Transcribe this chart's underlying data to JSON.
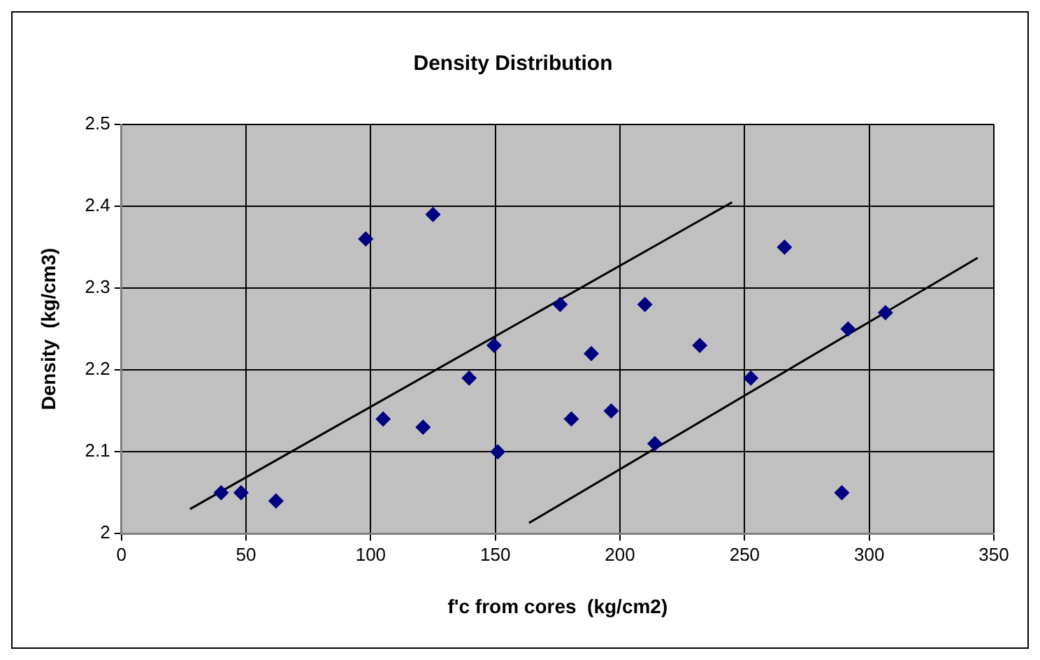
{
  "chart_data": {
    "type": "scatter",
    "title": "Density Distribution",
    "xlabel": "f'c from cores  (kg/cm2)",
    "ylabel": "Density  (kg/cm3)",
    "xlim": [
      0,
      350
    ],
    "xticks": [
      0,
      50,
      100,
      150,
      200,
      250,
      300,
      350
    ],
    "ylim": [
      2,
      2.5
    ],
    "yticks": [
      2,
      2.1,
      2.2,
      2.3,
      2.4,
      2.5
    ],
    "grid": true,
    "legend": false,
    "marker": "diamond",
    "series": [
      {
        "color": "#000080",
        "x": [
          40,
          48,
          62,
          98,
          125,
          105,
          121,
          139.5,
          149.5,
          151,
          176,
          180.5,
          188.5,
          196.5,
          210,
          214,
          232,
          252.5,
          266,
          291.5,
          306.5,
          289
        ],
        "values": [
          2.05,
          2.05,
          2.04,
          2.36,
          2.39,
          2.14,
          2.13,
          2.19,
          2.23,
          2.1,
          2.28,
          2.14,
          2.22,
          2.15,
          2.28,
          2.11,
          2.23,
          2.19,
          2.35,
          2.25,
          2.27,
          2.05
        ]
      },
      {
        "type": "line",
        "color": "#000000",
        "marker": "none",
        "x": [
          27.5,
          245
        ],
        "values": [
          2.03,
          2.405
        ]
      },
      {
        "type": "line",
        "color": "#000000",
        "marker": "none",
        "x": [
          163.5,
          343.5
        ],
        "values": [
          2.013,
          2.337
        ]
      }
    ]
  }
}
